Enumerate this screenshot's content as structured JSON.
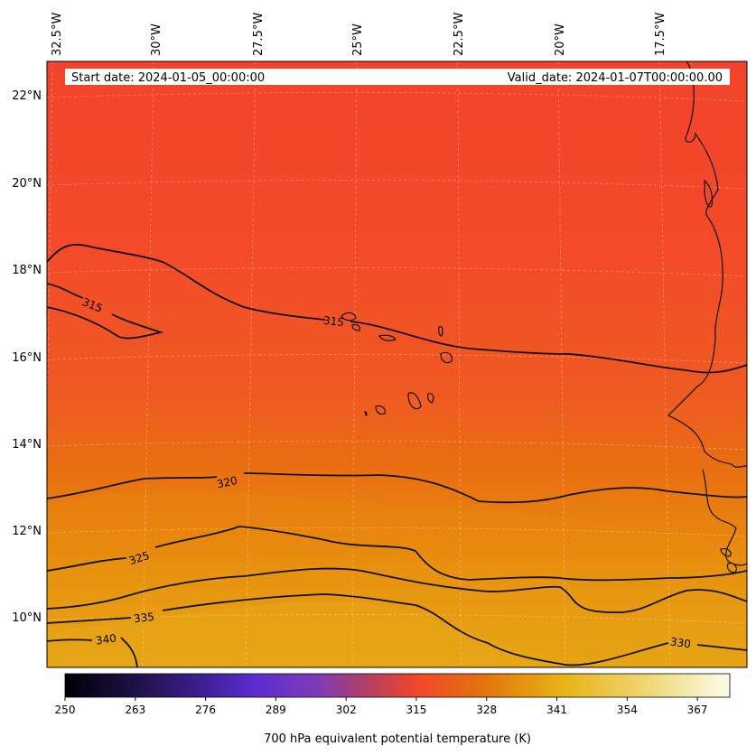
{
  "header": {
    "start_date": "Start date: 2024-01-05_00:00:00",
    "valid_date": "Valid_date: 2024-01-07T00:00:00.00"
  },
  "longitude_ticks": [
    "32.5°W",
    "30°W",
    "27.5°W",
    "25°W",
    "22.5°W",
    "20°W",
    "17.5°W"
  ],
  "latitude_ticks": [
    "22°N",
    "20°N",
    "18°N",
    "16°N",
    "14°N",
    "12°N",
    "10°N"
  ],
  "contour_labels": {
    "c315a": "315",
    "c315b": "315",
    "c320": "320",
    "c325": "325",
    "c335": "335",
    "c340": "340",
    "c330": "330"
  },
  "colorbar": {
    "min": 250,
    "max": 373,
    "ticks": [
      "250",
      "263",
      "276",
      "289",
      "302",
      "315",
      "328",
      "341",
      "354",
      "367"
    ],
    "tick_values": [
      250,
      263,
      276,
      289,
      302,
      315,
      328,
      341,
      354,
      367
    ],
    "label": "700 hPa equivalent potential temperature (K)",
    "colormap": [
      "#000004",
      "#1c1044",
      "#3b1e8c",
      "#5a2bd0",
      "#7e3bb8",
      "#b6405e",
      "#f2462b",
      "#e2740c",
      "#e8b317",
      "#eed87a",
      "#fcfcea"
    ]
  },
  "colors": {
    "warm_north": "#f3432c",
    "mid": "#e8650f",
    "south": "#e7a915"
  }
}
